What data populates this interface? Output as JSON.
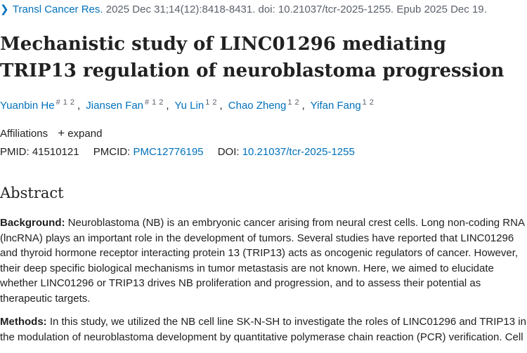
{
  "citation": {
    "journal": "Transl Cancer Res.",
    "details": " 2025 Dec 31;14(12):8418-8431. doi: 10.21037/tcr-2025-1255. Epub 2025 Dec 19."
  },
  "title": "Mechanistic study of LINC01296 mediating TRIP13 regulation of neuroblastoma progression",
  "authors": [
    {
      "name": "Yuanbin He",
      "marks": [
        "#",
        "1",
        "2"
      ]
    },
    {
      "name": "Jiansen Fan",
      "marks": [
        "#",
        "1",
        "2"
      ]
    },
    {
      "name": "Yu Lin",
      "marks": [
        "1",
        "2"
      ]
    },
    {
      "name": "Chao Zheng",
      "marks": [
        "1",
        "2"
      ]
    },
    {
      "name": "Yifan Fang",
      "marks": [
        "1",
        "2"
      ]
    }
  ],
  "affiliations": {
    "label": "Affiliations",
    "expand_label": "expand"
  },
  "ids": {
    "pmid_label": "PMID:",
    "pmid": "41510121",
    "pmcid_label": "PMCID:",
    "pmcid": "PMC12776195",
    "doi_label": "DOI:",
    "doi": "10.21037/tcr-2025-1255"
  },
  "abstract": {
    "heading": "Abstract",
    "background_label": "Background:",
    "background_text": " Neuroblastoma (NB) is an embryonic cancer arising from neural crest cells. Long non-coding RNA (lncRNA) plays an important role in the development of tumors. Several studies have reported that LINC01296 and thyroid hormone receptor interacting protein 13 (TRIP13) acts as oncogenic regulators of cancer. However, their deep specific biological mechanisms in tumor metastasis are not known. Here, we aimed to elucidate whether LINC01296 or TRIP13 drives NB proliferation and progression, and to assess their potential as therapeutic targets.",
    "methods_label": "Methods:",
    "methods_text": " In this study, we utilized the NB cell line SK-N-SH to investigate the roles of LINC01296 and TRIP13 in the modulation of neuroblastoma development by quantitative polymerase chain reaction (PCR) verification. Cell"
  },
  "colors": {
    "link": "#0071bc",
    "text": "#212121",
    "muted": "#5b616b"
  }
}
